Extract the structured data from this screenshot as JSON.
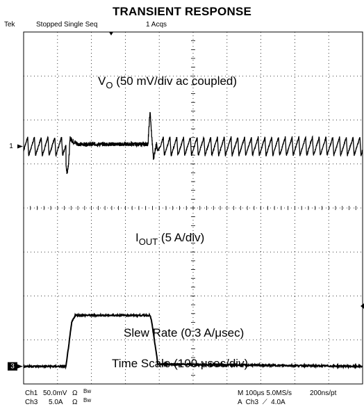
{
  "header": {
    "title": "TRANSIENT RESPONSE",
    "brand": "Tek",
    "status": "Stopped Single Seq",
    "acqs": "1 Acqs"
  },
  "chart_data": {
    "type": "line",
    "title": "TRANSIENT RESPONSE",
    "divisions": {
      "x": 10,
      "y": 8
    },
    "xlim_div": [
      0,
      10
    ],
    "ylim_div": [
      -4,
      4
    ],
    "grid": true,
    "time_scale_us_per_div": 100,
    "series": [
      {
        "name": "VO",
        "channel": "1",
        "scale_per_div": "50 mV/div ac coupled",
        "ground_marker_div": 1.4,
        "ripple_period_div": 0.2,
        "ripple_pp_div": 0.42,
        "points_div": [
          [
            0,
            1.4
          ],
          [
            1.25,
            1.4
          ],
          [
            1.25,
            1.0
          ],
          [
            1.28,
            0.78
          ],
          [
            1.33,
            1.05
          ],
          [
            1.37,
            1.58
          ],
          [
            1.45,
            1.52
          ],
          [
            1.6,
            1.45
          ],
          [
            3.68,
            1.45
          ],
          [
            3.68,
            1.62
          ],
          [
            3.73,
            2.2
          ],
          [
            3.77,
            1.72
          ],
          [
            3.83,
            1.12
          ],
          [
            3.9,
            1.4
          ],
          [
            10,
            1.4
          ]
        ]
      },
      {
        "name": "IOUT",
        "channel": "3",
        "scale_per_div": "5 A/div",
        "ground_marker_div": -3.6,
        "points_div": [
          [
            0,
            -3.6
          ],
          [
            1.25,
            -3.6
          ],
          [
            1.42,
            -2.6
          ],
          [
            1.52,
            -2.44
          ],
          [
            3.73,
            -2.44
          ],
          [
            3.78,
            -2.6
          ],
          [
            3.96,
            -3.55
          ],
          [
            10,
            -3.6
          ]
        ]
      }
    ],
    "annotations": {
      "vo_main": "V",
      "vo_sub": "O",
      "vo_rest": " (50 mV/div ac coupled)",
      "iout_main": "I",
      "iout_sub": "OUT",
      "iout_rest": " (5 A/div)",
      "slew": "Slew Rate (0.3 A/μsec)",
      "timescale": "Time Scale (100 μsec/div)"
    },
    "markers": {
      "ch1": "1",
      "ch3": "3"
    }
  },
  "footer": {
    "ch1_label": "Ch1",
    "ch1_scale": "50.0mV",
    "ch1_imp": "Ω",
    "ch1_bw": "Bw",
    "ch3_label": "Ch3",
    "ch3_scale": "5.0A",
    "ch3_imp": "Ω",
    "ch3_bw": "Bw",
    "timebase": "M 100μs 5.0MS/s",
    "record": "200ns/pt",
    "trigger": "A  Ch3  ⟋  4.0A"
  }
}
